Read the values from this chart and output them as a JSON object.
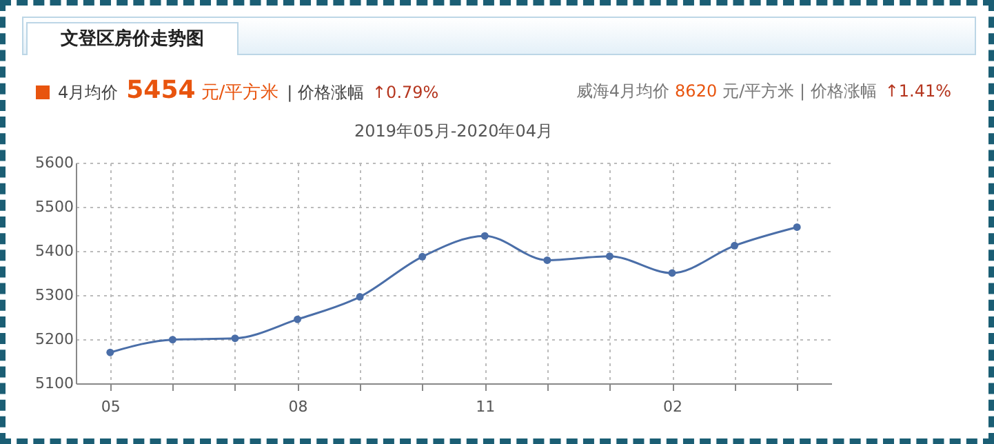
{
  "chart_data": {
    "type": "line",
    "title": "文登区房价走势图",
    "subtitle": "2019年05月-2020年04月",
    "annotations": [
      "4月均价",
      "5454",
      "元/平方米",
      "| 价格涨幅",
      "↑0.79%",
      "威海4月均价",
      "8620",
      "元/平方米 | 价格涨幅",
      "↑1.41%"
    ],
    "categories": [
      "05",
      null,
      null,
      "08",
      null,
      null,
      "11",
      null,
      null,
      "02",
      null,
      null
    ],
    "series": [
      {
        "color": "#4a6ea8",
        "values": [
          5170,
          5199,
          5202,
          5245,
          5296,
          5387,
          5434,
          5379,
          5388,
          5350,
          5412,
          5454
        ]
      }
    ],
    "ylim": [
      5100,
      5600
    ],
    "yticks": [
      5100,
      5200,
      5300,
      5400,
      5500,
      5600
    ],
    "grid": true,
    "marker": "circle",
    "line_style": "solid"
  }
}
